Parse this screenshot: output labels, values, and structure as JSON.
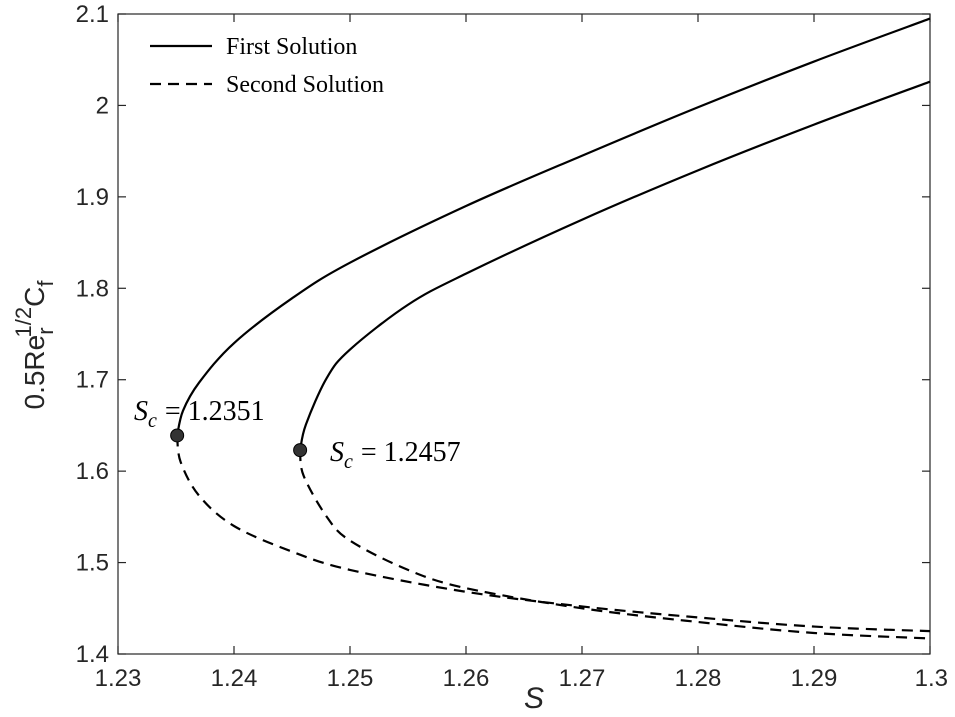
{
  "chart_data": {
    "type": "line",
    "xlabel": "S",
    "ylabel": {
      "base": "0.5Re",
      "sub": "r",
      "sup": "1/2",
      "tail": "C",
      "tail_sub": "f"
    },
    "xlim": [
      1.23,
      1.3
    ],
    "ylim": [
      1.4,
      2.1
    ],
    "xticks": [
      "1.23",
      "1.24",
      "1.25",
      "1.26",
      "1.27",
      "1.28",
      "1.29",
      "1.3"
    ],
    "xtick_values": [
      1.23,
      1.24,
      1.25,
      1.26,
      1.27,
      1.28,
      1.29,
      1.3
    ],
    "yticks": [
      "1.4",
      "1.5",
      "1.6",
      "1.7",
      "1.8",
      "1.9",
      "2",
      "2.1"
    ],
    "ytick_values": [
      1.4,
      1.5,
      1.6,
      1.7,
      1.8,
      1.9,
      2.0,
      2.1
    ],
    "grid": false,
    "legend": {
      "placement": "top-left",
      "entries": [
        {
          "label": "First Solution",
          "style": "solid"
        },
        {
          "label": "Second Solution",
          "style": "dashed"
        }
      ]
    },
    "series": [
      {
        "curve": 1,
        "style": "solid",
        "x": [
          1.2351,
          1.2356,
          1.237,
          1.24,
          1.245,
          1.25,
          1.26,
          1.27,
          1.28,
          1.29,
          1.3
        ],
        "y": [
          1.639,
          1.666,
          1.697,
          1.74,
          1.789,
          1.828,
          1.89,
          1.945,
          1.998,
          2.048,
          2.095
        ]
      },
      {
        "curve": 1,
        "style": "dashed",
        "x": [
          1.2351,
          1.2354,
          1.237,
          1.24,
          1.245,
          1.25,
          1.26,
          1.27,
          1.28,
          1.29,
          1.3
        ],
        "y": [
          1.639,
          1.61,
          1.573,
          1.54,
          1.512,
          1.492,
          1.468,
          1.452,
          1.44,
          1.43,
          1.425
        ]
      },
      {
        "curve": 2,
        "style": "solid",
        "x": [
          1.2457,
          1.2462,
          1.248,
          1.25,
          1.255,
          1.26,
          1.27,
          1.28,
          1.29,
          1.3
        ],
        "y": [
          1.623,
          1.651,
          1.702,
          1.733,
          1.782,
          1.816,
          1.875,
          1.929,
          1.979,
          2.026
        ]
      },
      {
        "curve": 2,
        "style": "dashed",
        "x": [
          1.2457,
          1.246,
          1.248,
          1.25,
          1.255,
          1.26,
          1.27,
          1.28,
          1.29,
          1.3
        ],
        "y": [
          1.623,
          1.595,
          1.55,
          1.524,
          1.492,
          1.472,
          1.45,
          1.435,
          1.423,
          1.417
        ]
      }
    ],
    "critical_points": [
      {
        "x": 1.2351,
        "y": 1.639,
        "label_var": "S",
        "label_sub": "c",
        "label_value": "= 1.2351"
      },
      {
        "x": 1.2457,
        "y": 1.623,
        "label_var": "S",
        "label_sub": "c",
        "label_value": "= 1.2457"
      }
    ]
  }
}
